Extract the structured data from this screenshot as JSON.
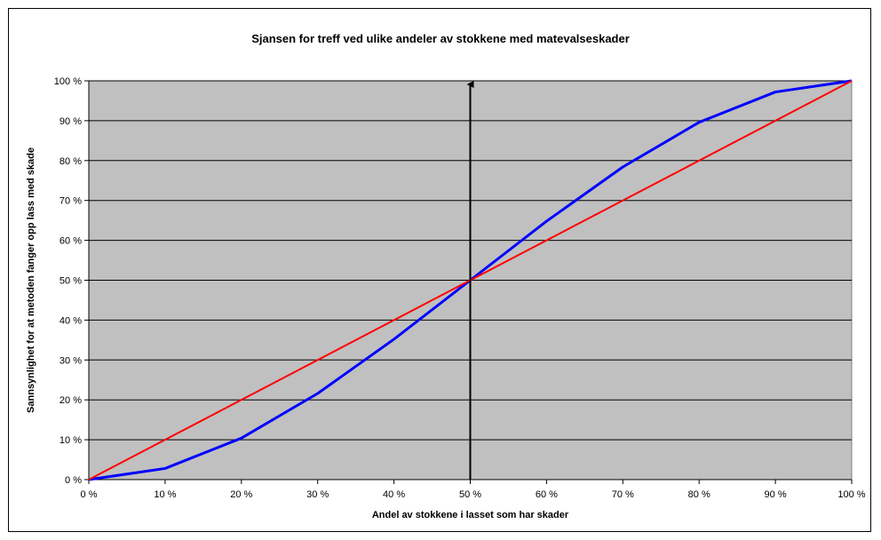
{
  "chart_data": {
    "type": "line",
    "title": "Sjansen for treff ved ulike andeler av stokkene med matevalseskader",
    "xlabel": "Andel av stokkene i lasset som har skader",
    "ylabel": "Sannsynlighet for at metoden fanger opp lass med skade",
    "xlim": [
      0,
      100
    ],
    "ylim": [
      0,
      100
    ],
    "x_ticks": [
      "0 %",
      "10 %",
      "20 %",
      "30 %",
      "40 %",
      "50 %",
      "60 %",
      "70 %",
      "80 %",
      "90 %",
      "100 %"
    ],
    "y_ticks": [
      "0 %",
      "10 %",
      "20 %",
      "30 %",
      "40 %",
      "50 %",
      "60 %",
      "70 %",
      "80 %",
      "90 %",
      "100 %"
    ],
    "grid": "horizontal",
    "legend": "none",
    "plot_background": "#c0c0c0",
    "series": [
      {
        "color": "#0000ff",
        "x": [
          0,
          10,
          20,
          30,
          40,
          50,
          60,
          70,
          80,
          90,
          100
        ],
        "values": [
          0,
          2.8,
          10.4,
          21.6,
          35.2,
          50,
          64.8,
          78.4,
          89.6,
          97.2,
          100
        ]
      },
      {
        "color": "#ff0000",
        "x": [
          0,
          100
        ],
        "values": [
          0,
          100
        ]
      }
    ],
    "annotation": {
      "type": "vertical-arrow",
      "x": 50,
      "y_from": 0,
      "y_to": 100,
      "color": "#000000"
    }
  }
}
